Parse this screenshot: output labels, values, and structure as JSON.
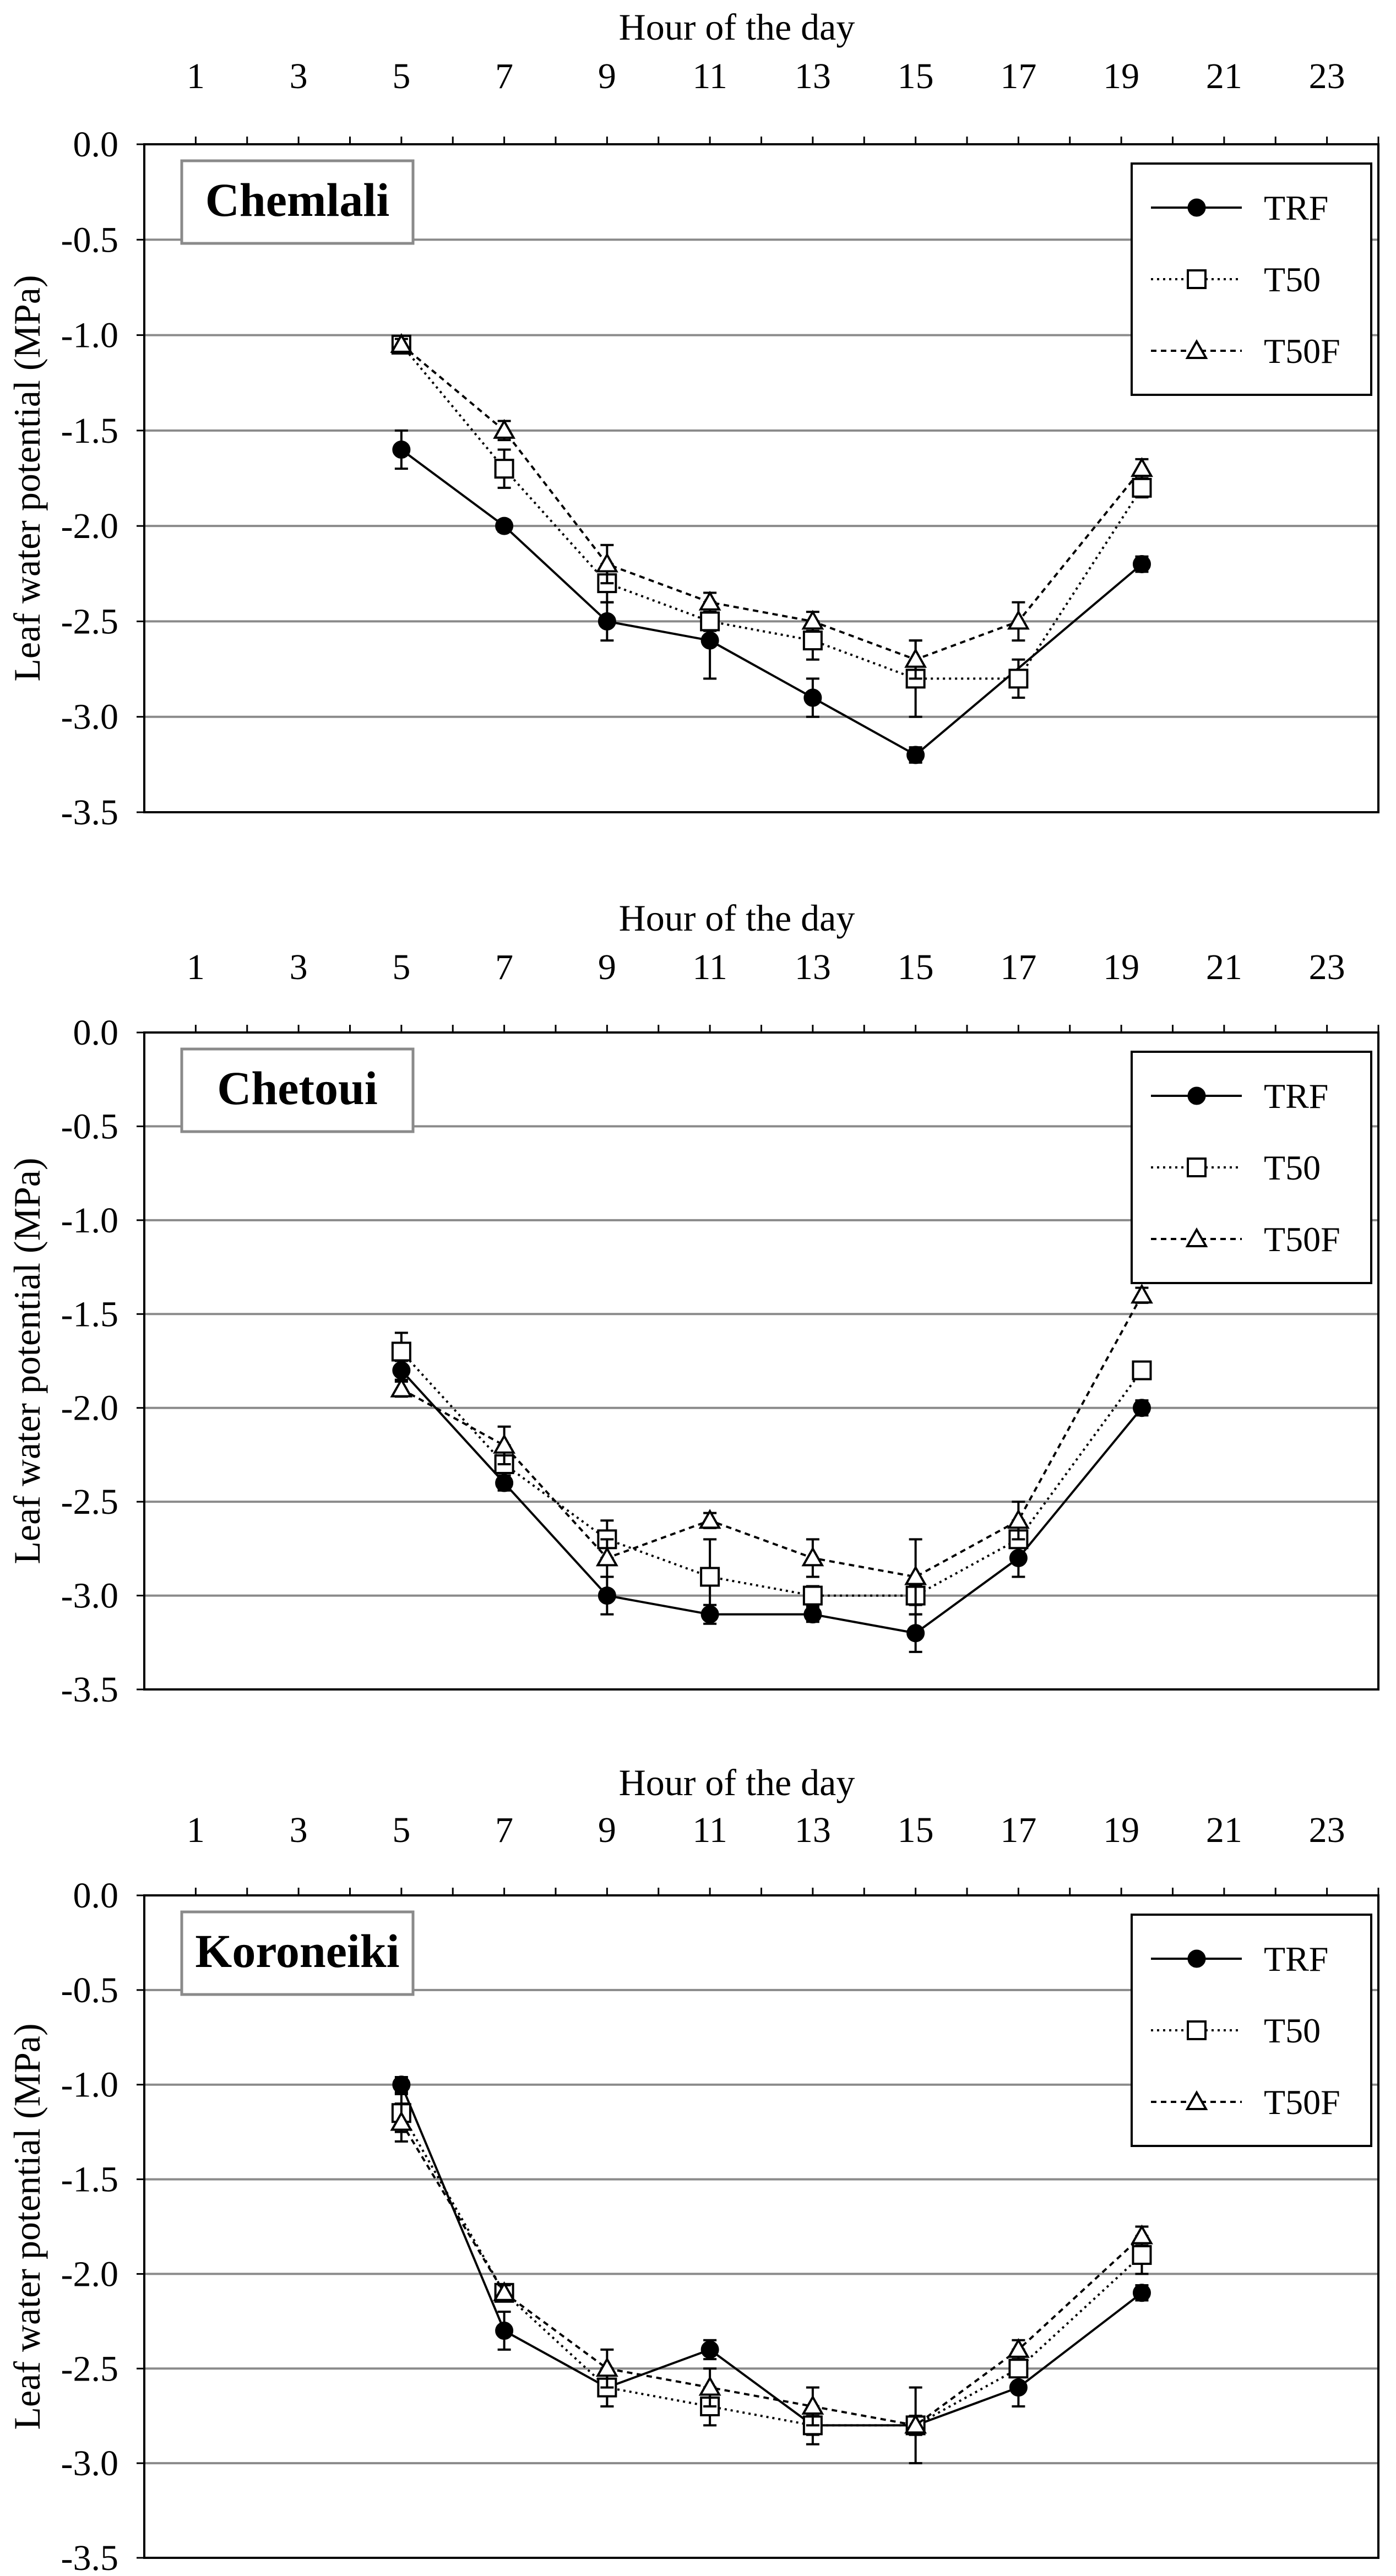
{
  "chart_data": [
    {
      "type": "line",
      "panel_label": "Chemlali",
      "x_axis_label": "Hour of the day",
      "y_axis_label": "Leaf water potential (MPa)",
      "x_ticks": [
        "1",
        "3",
        "5",
        "7",
        "9",
        "11",
        "13",
        "15",
        "17",
        "19",
        "21",
        "23"
      ],
      "y_ticks": [
        "0.0",
        "-0.5",
        "-1.0",
        "-1.5",
        "-2.0",
        "-2.5",
        "-3.0",
        "-3.5"
      ],
      "xlim": [
        0,
        24
      ],
      "ylim": [
        -3.5,
        0
      ],
      "x_axis_position": "top",
      "grid": "horizontal",
      "legend_position": "top-right",
      "series": [
        {
          "name": "TRF",
          "marker": "filled-circle",
          "line": "solid",
          "x": [
            5,
            7,
            9,
            11,
            13,
            15,
            19.4
          ],
          "y": [
            -1.6,
            -2.0,
            -2.5,
            -2.6,
            -2.9,
            -3.2,
            -2.2
          ],
          "err": [
            0.1,
            0.03,
            0.1,
            0.2,
            0.1,
            0.04,
            0.04
          ]
        },
        {
          "name": "T50",
          "marker": "open-square",
          "line": "dotted",
          "x": [
            5,
            7,
            9,
            11,
            13,
            15,
            17,
            19.4
          ],
          "y": [
            -1.05,
            -1.7,
            -2.3,
            -2.5,
            -2.6,
            -2.8,
            -2.8,
            -1.8
          ],
          "err": [
            0.03,
            0.1,
            0.1,
            0.05,
            0.1,
            0.2,
            0.1,
            0.05
          ]
        },
        {
          "name": "T50F",
          "marker": "open-triangle",
          "line": "dashed",
          "x": [
            5,
            7,
            9,
            11,
            13,
            15,
            17,
            19.4
          ],
          "y": [
            -1.05,
            -1.5,
            -2.2,
            -2.4,
            -2.5,
            -2.7,
            -2.5,
            -1.7
          ],
          "err": [
            0.03,
            0.05,
            0.1,
            0.05,
            0.05,
            0.1,
            0.1,
            0.05
          ]
        }
      ]
    },
    {
      "type": "line",
      "panel_label": "Chetoui",
      "x_axis_label": "Hour of the day",
      "y_axis_label": "Leaf water potential (MPa)",
      "x_ticks": [
        "1",
        "3",
        "5",
        "7",
        "9",
        "11",
        "13",
        "15",
        "17",
        "19",
        "21",
        "23"
      ],
      "y_ticks": [
        "0.0",
        "-0.5",
        "-1.0",
        "-1.5",
        "-2.0",
        "-2.5",
        "-3.0",
        "-3.5"
      ],
      "xlim": [
        0,
        24
      ],
      "ylim": [
        -3.5,
        0
      ],
      "x_axis_position": "top",
      "grid": "horizontal",
      "legend_position": "top-right",
      "series": [
        {
          "name": "TRF",
          "marker": "filled-circle",
          "line": "solid",
          "x": [
            5,
            7,
            9,
            11,
            13,
            15,
            17,
            19.4
          ],
          "y": [
            -1.8,
            -2.4,
            -3.0,
            -3.1,
            -3.1,
            -3.2,
            -2.8,
            -2.0
          ],
          "err": [
            0.05,
            0.04,
            0.1,
            0.05,
            0.04,
            0.1,
            0.1,
            0.04
          ]
        },
        {
          "name": "T50",
          "marker": "open-square",
          "line": "dotted",
          "x": [
            5,
            7,
            9,
            11,
            13,
            15,
            17,
            19.4
          ],
          "y": [
            -1.7,
            -2.3,
            -2.7,
            -2.9,
            -3.0,
            -3.0,
            -2.7,
            -1.8
          ],
          "err": [
            0.1,
            0.1,
            0.1,
            0.2,
            0.05,
            0.05,
            0.1,
            0.03
          ]
        },
        {
          "name": "T50F",
          "marker": "open-triangle",
          "line": "dashed",
          "x": [
            5,
            7,
            9,
            11,
            13,
            15,
            17,
            19.4
          ],
          "y": [
            -1.9,
            -2.2,
            -2.8,
            -2.6,
            -2.8,
            -2.9,
            -2.6,
            -1.4
          ],
          "err": [
            0.04,
            0.1,
            0.1,
            0.04,
            0.1,
            0.2,
            0.1,
            0.04
          ]
        }
      ]
    },
    {
      "type": "line",
      "panel_label": "Koroneiki",
      "x_axis_label": "Hour of the day",
      "y_axis_label": "Leaf water potential (MPa)",
      "x_ticks": [
        "1",
        "3",
        "5",
        "7",
        "9",
        "11",
        "13",
        "15",
        "17",
        "19",
        "21",
        "23"
      ],
      "y_ticks": [
        "0.0",
        "-0.5",
        "-1.0",
        "-1.5",
        "-2.0",
        "-2.5",
        "-3.0",
        "-3.5"
      ],
      "xlim": [
        0,
        24
      ],
      "ylim": [
        -3.5,
        0
      ],
      "x_axis_position": "top",
      "grid": "horizontal",
      "legend_position": "top-right",
      "series": [
        {
          "name": "TRF",
          "marker": "filled-circle",
          "line": "solid",
          "x": [
            5,
            7,
            9,
            11,
            13,
            15,
            17,
            19.4
          ],
          "y": [
            -1.0,
            -2.3,
            -2.6,
            -2.4,
            -2.8,
            -2.8,
            -2.6,
            -2.1
          ],
          "err": [
            0.04,
            0.1,
            0.1,
            0.05,
            0.05,
            0.05,
            0.1,
            0.04
          ]
        },
        {
          "name": "T50",
          "marker": "open-square",
          "line": "dotted",
          "x": [
            5,
            7,
            9,
            11,
            13,
            15,
            17,
            19.4
          ],
          "y": [
            -1.15,
            -2.1,
            -2.6,
            -2.7,
            -2.8,
            -2.8,
            -2.5,
            -1.9
          ],
          "err": [
            0.1,
            0.03,
            0.1,
            0.1,
            0.1,
            0.2,
            0.1,
            0.1
          ]
        },
        {
          "name": "T50F",
          "marker": "open-triangle",
          "line": "dashed",
          "x": [
            5,
            7,
            9,
            11,
            13,
            15,
            17,
            19.4
          ],
          "y": [
            -1.2,
            -2.1,
            -2.5,
            -2.6,
            -2.7,
            -2.8,
            -2.4,
            -1.8
          ],
          "err": [
            0.1,
            0.04,
            0.1,
            0.1,
            0.1,
            0.05,
            0.05,
            0.05
          ]
        }
      ]
    }
  ]
}
